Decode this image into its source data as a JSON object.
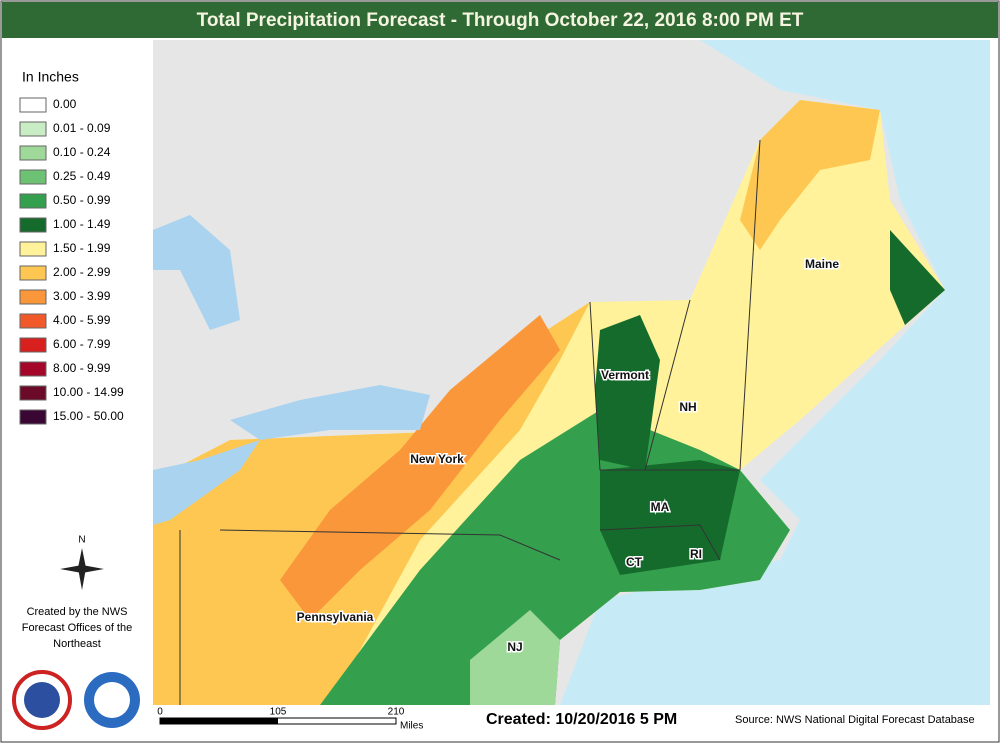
{
  "header": {
    "title": "Total Precipitation Forecast - Through October 22, 2016 8:00 PM ET"
  },
  "legend": {
    "title": "In Inches",
    "items": [
      {
        "label": "0.00",
        "color": "#ffffff"
      },
      {
        "label": "0.01 - 0.09",
        "color": "#c8ecc4"
      },
      {
        "label": "0.10 - 0.24",
        "color": "#9fd99a"
      },
      {
        "label": "0.25 - 0.49",
        "color": "#6cc173"
      },
      {
        "label": "0.50 - 0.99",
        "color": "#34a04d"
      },
      {
        "label": "1.00 - 1.49",
        "color": "#156b2c"
      },
      {
        "label": "1.50 - 1.99",
        "color": "#fff29a"
      },
      {
        "label": "2.00 - 2.99",
        "color": "#fdc751"
      },
      {
        "label": "3.00 - 3.99",
        "color": "#f9973a"
      },
      {
        "label": "4.00 - 5.99",
        "color": "#f2592a"
      },
      {
        "label": "6.00 - 7.99",
        "color": "#d8201f"
      },
      {
        "label": "8.00 - 9.99",
        "color": "#a5072a"
      },
      {
        "label": "10.00 - 14.99",
        "color": "#6c0a2a"
      },
      {
        "label": "15.00 - 50.00",
        "color": "#3a0633"
      }
    ]
  },
  "compass": "N",
  "credit": [
    "Created by the NWS",
    "Forecast Offices of the",
    "Northeast"
  ],
  "map_labels": [
    "New York",
    "Pennsylvania",
    "Vermont",
    "NH",
    "Maine",
    "MA",
    "CT",
    "RI",
    "NJ"
  ],
  "scale": {
    "ticks": [
      "0",
      "105",
      "210"
    ],
    "unit": "Miles"
  },
  "created": "Created: 10/20/2016 5 PM",
  "source": "Source: NWS National Digital Forecast Database"
}
